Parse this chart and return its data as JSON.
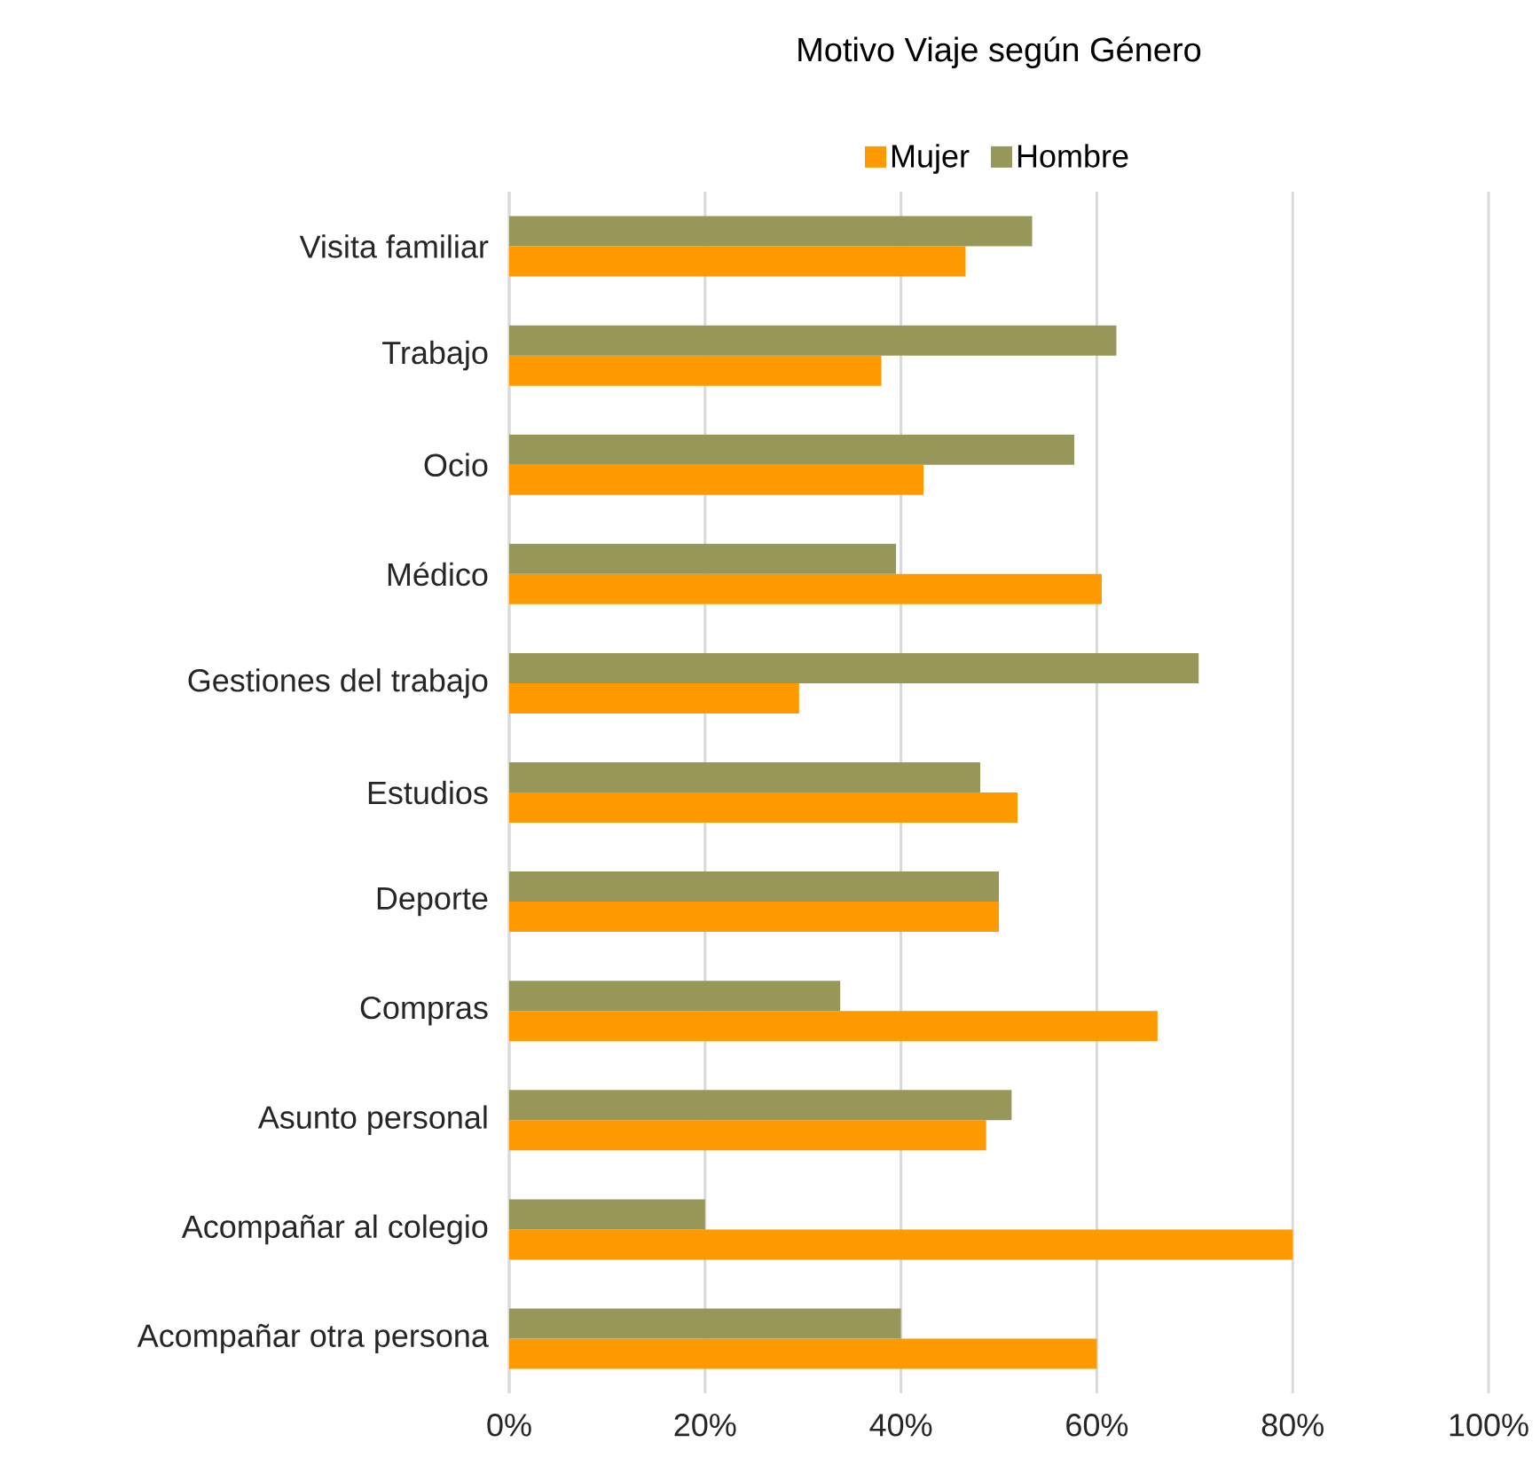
{
  "chart_data": {
    "type": "bar",
    "orientation": "horizontal",
    "title": "Motivo Viaje según Género",
    "categories": [
      "Visita familiar",
      "Trabajo",
      "Ocio",
      "Médico",
      "Gestiones del trabajo",
      "Estudios",
      "Deporte",
      "Compras",
      "Asunto personal",
      "Acompañar al colegio",
      "Acompañar otra persona"
    ],
    "series": [
      {
        "name": "Mujer",
        "color": "#ff9900",
        "values": [
          46.6,
          38,
          42.3,
          60.5,
          29.6,
          51.9,
          50,
          66.2,
          48.7,
          80,
          60
        ]
      },
      {
        "name": "Hombre",
        "color": "#97975a",
        "values": [
          53.4,
          62,
          57.7,
          39.5,
          70.4,
          48.1,
          50,
          33.8,
          51.3,
          20,
          40
        ]
      }
    ],
    "xlim": [
      0,
      100
    ],
    "xticks": [
      {
        "value": 0,
        "label": "0%"
      },
      {
        "value": 20,
        "label": "20%"
      },
      {
        "value": 40,
        "label": "40%"
      },
      {
        "value": 60,
        "label": "60%"
      },
      {
        "value": 80,
        "label": "80%"
      },
      {
        "value": 100,
        "label": "100%"
      }
    ],
    "grid": "x",
    "legend": "top"
  }
}
